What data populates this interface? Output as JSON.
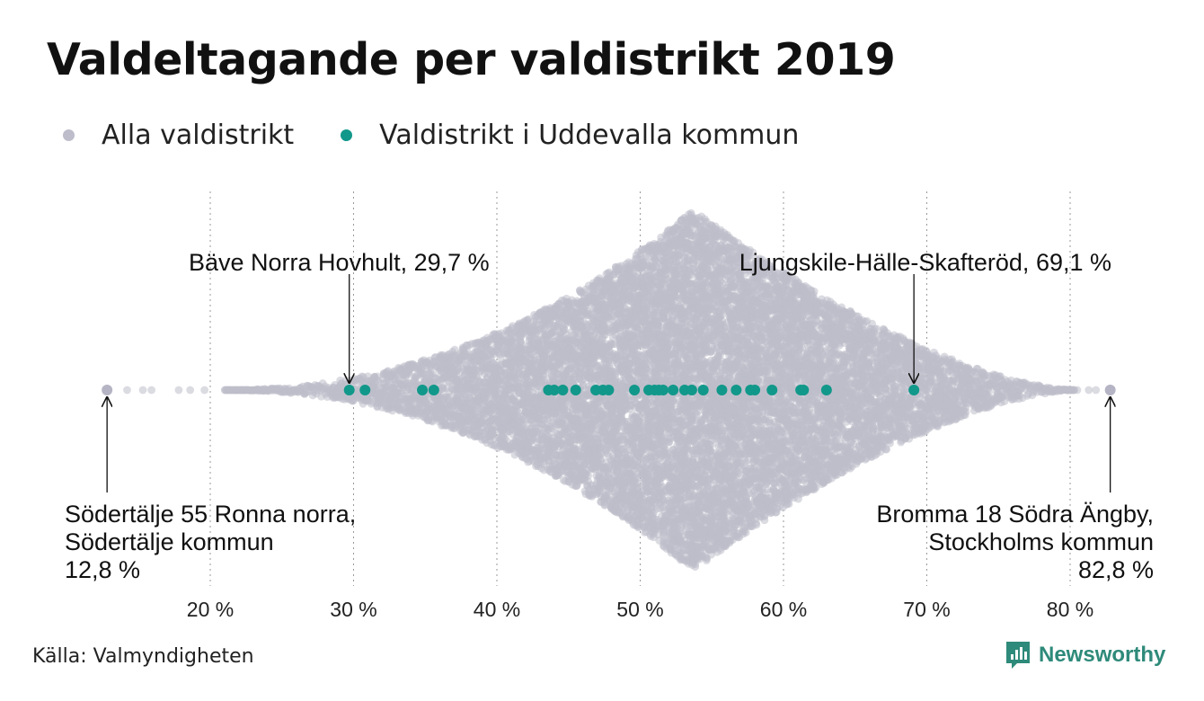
{
  "title": "Valdeltagande per valdistrikt 2019",
  "legend": [
    {
      "label": "Alla valdistrikt",
      "color": "#bdbdcb"
    },
    {
      "label": "Valdistrikt i Uddevalla kommun",
      "color": "#11988a"
    }
  ],
  "source": "Källa: Valmyndigheten",
  "brand": "Newsworthy",
  "chart_data": {
    "type": "scatter",
    "subtype": "beeswarm",
    "x_unit": "%",
    "xlim": [
      12,
      84
    ],
    "ticks": [
      20,
      30,
      40,
      50,
      60,
      70,
      80
    ],
    "tick_labels": [
      "20 %",
      "30 %",
      "40 %",
      "50 %",
      "60 %",
      "70 %",
      "80 %"
    ],
    "grid": "vertical dotted",
    "series": [
      {
        "name": "Alla valdistrikt",
        "color": "#bdbdcb",
        "distribution": {
          "min": 12.8,
          "max": 82.8,
          "mode": 53.7,
          "sparse_outliers": [
            14.2,
            15.3,
            15.9,
            17.8,
            18.6,
            19.6,
            79.8,
            80.5,
            81.3,
            81.8
          ]
        }
      },
      {
        "name": "Valdistrikt i Uddevalla kommun",
        "color": "#11988a",
        "values": [
          29.7,
          30.8,
          34.8,
          35.6,
          43.6,
          44.0,
          44.6,
          45.5,
          46.9,
          47.4,
          47.8,
          49.6,
          50.6,
          51.0,
          51.3,
          51.6,
          52.3,
          53.1,
          53.6,
          54.4,
          55.7,
          56.7,
          57.7,
          58.0,
          59.2,
          61.2,
          61.4,
          63.0,
          69.1
        ]
      }
    ],
    "annotations": [
      {
        "lines": [
          "Bäve Norra Hovhult, 29,7 %"
        ],
        "value": 29.7,
        "align": "left",
        "position": "above"
      },
      {
        "lines": [
          "Ljungskile-Hälle-Skafteröd, 69,1 %"
        ],
        "value": 69.1,
        "align": "right",
        "position": "above"
      },
      {
        "lines": [
          "Södertälje 55 Ronna norra,",
          "Södertälje kommun",
          "12,8 %"
        ],
        "value": 12.8,
        "align": "left",
        "position": "below"
      },
      {
        "lines": [
          "Bromma 18 Södra Ängby,",
          "Stockholms kommun",
          "82,8 %"
        ],
        "value": 82.8,
        "align": "right",
        "position": "below"
      }
    ]
  }
}
